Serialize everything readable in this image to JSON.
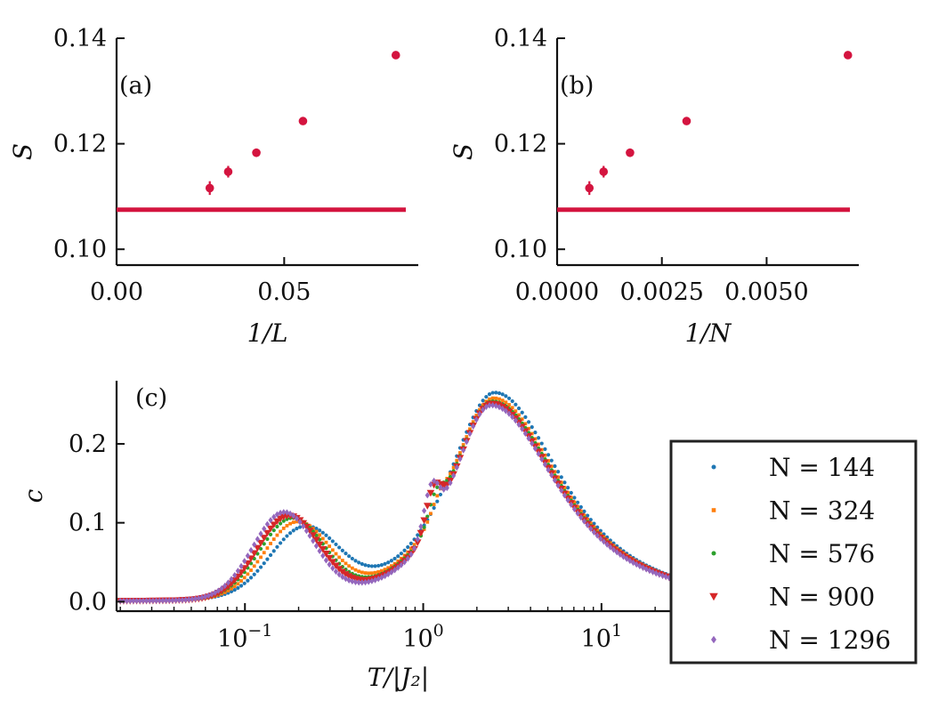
{
  "chart_data": [
    {
      "type": "scatter",
      "panel_label": "(a)",
      "xlabel": "1/L",
      "ylabel": "S",
      "xlim": [
        0.0,
        0.09
      ],
      "ylim": [
        0.097,
        0.14
      ],
      "xticks": [
        0.0,
        0.05
      ],
      "xtick_labels": [
        "0.00",
        "0.05"
      ],
      "yticks": [
        0.1,
        0.12,
        0.14
      ],
      "ytick_labels": [
        "0.10",
        "0.12",
        "0.14"
      ],
      "color": "#d4143f",
      "hline": 0.1075,
      "x": [
        0.0833,
        0.0556,
        0.0417,
        0.0333,
        0.0278
      ],
      "y": [
        0.1368,
        0.1243,
        0.1183,
        0.1147,
        0.1116
      ],
      "yerr": [
        0.0004,
        0.0005,
        0.0008,
        0.0011,
        0.0013
      ]
    },
    {
      "type": "scatter",
      "panel_label": "(b)",
      "xlabel": "1/N",
      "ylabel": "S",
      "xlim": [
        0.0,
        0.0072
      ],
      "ylim": [
        0.097,
        0.14
      ],
      "xticks": [
        0.0,
        0.0025,
        0.005
      ],
      "xtick_labels": [
        "0.0000",
        "0.0025",
        "0.0050"
      ],
      "yticks": [
        0.1,
        0.12,
        0.14
      ],
      "ytick_labels": [
        "0.10",
        "0.12",
        "0.14"
      ],
      "color": "#d4143f",
      "hline": 0.1075,
      "x": [
        0.00694,
        0.00309,
        0.00174,
        0.00111,
        0.00077
      ],
      "y": [
        0.1368,
        0.1243,
        0.1183,
        0.1147,
        0.1116
      ],
      "yerr": [
        0.0004,
        0.0005,
        0.0008,
        0.0011,
        0.0013
      ]
    },
    {
      "type": "scatter",
      "panel_label": "(c)",
      "xlabel": "T/|J₂|",
      "ylabel": "c",
      "xscale": "log",
      "xlim_log10": [
        -1.72,
        1.42
      ],
      "ylim": [
        -0.012,
        0.28
      ],
      "yticks": [
        0.0,
        0.1,
        0.2
      ],
      "ytick_labels": [
        "0.0",
        "0.1",
        "0.2"
      ],
      "xticks_log10": [
        -1,
        0,
        1
      ],
      "xtick_base": "10",
      "xtick_exponents": [
        "−1",
        "0",
        "1"
      ],
      "t_range": [
        0.02,
        25
      ],
      "points_per_series": 170,
      "legend_position": "lower-right",
      "series": [
        {
          "name": "N = 144",
          "label": "N = 144",
          "color": "#1f77b4",
          "marker": "circle",
          "a1": 0.085,
          "m1": 0.215,
          "w1": 0.27,
          "a2": 0.265,
          "m2": 2.52,
          "w2": 0.4,
          "sl": 0.63,
          "sr": 0.9,
          "e": 0.0,
          "ec": 1.3
        },
        {
          "name": "N = 324",
          "label": "N = 324",
          "color": "#ff7f0e",
          "marker": "square",
          "a1": 0.093,
          "m1": 0.195,
          "w1": 0.26,
          "a2": 0.258,
          "m2": 2.48,
          "w2": 0.42,
          "sl": 0.6,
          "sr": 0.9,
          "e": 0.015,
          "ec": 1.23
        },
        {
          "name": "N = 576",
          "label": "N = 576",
          "color": "#2ca02c",
          "marker": "circle",
          "a1": 0.099,
          "m1": 0.183,
          "w1": 0.255,
          "a2": 0.254,
          "m2": 2.45,
          "w2": 0.43,
          "sl": 0.58,
          "sr": 0.9,
          "e": 0.03,
          "ec": 1.18
        },
        {
          "name": "N = 900",
          "label": "N = 900",
          "color": "#d62728",
          "marker": "triangle-down",
          "a1": 0.103,
          "m1": 0.175,
          "w1": 0.25,
          "a2": 0.251,
          "m2": 2.42,
          "w2": 0.44,
          "sl": 0.56,
          "sr": 0.9,
          "e": 0.045,
          "ec": 1.14
        },
        {
          "name": "N = 1296",
          "label": "N = 1296",
          "color": "#9467bd",
          "marker": "diamond",
          "a1": 0.108,
          "m1": 0.165,
          "w1": 0.245,
          "a2": 0.249,
          "m2": 2.4,
          "w2": 0.45,
          "sl": 0.55,
          "sr": 0.9,
          "e": 0.055,
          "ec": 1.11
        }
      ]
    }
  ]
}
